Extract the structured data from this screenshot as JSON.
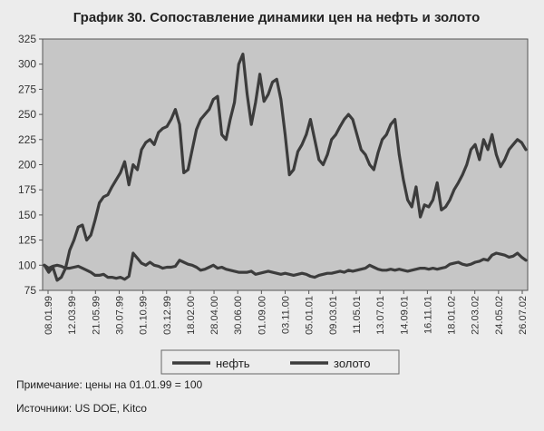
{
  "notes": {
    "note": "Примечание: цены на 01.01.99 = 100",
    "sources": "Источники: US DOE, Kitco"
  },
  "chart_data": {
    "type": "line",
    "title": "График 30. Сопоставление динамики цен на нефть и золото",
    "xlabel": "",
    "ylabel": "",
    "ylim": [
      75,
      325
    ],
    "yticks": [
      75,
      100,
      125,
      150,
      175,
      200,
      225,
      250,
      275,
      300,
      325
    ],
    "x_tick_labels": [
      "08.01.99",
      "12.03.99",
      "21.05.99",
      "30.07.99",
      "01.10.99",
      "03.12.99",
      "18.02.00",
      "28.04.00",
      "30.06.00",
      "01.09.00",
      "03.11.00",
      "05.01.01",
      "09.03.01",
      "11.05.01",
      "13.07.01",
      "14.09.01",
      "16.11.01",
      "18.01.02",
      "22.03.02",
      "24.05.02",
      "26.07.02"
    ],
    "grid": false,
    "legend_position": "bottom",
    "colors": {
      "plot_background": "#c6c6c6",
      "line": "#3c3c3c"
    },
    "series": [
      {
        "name": "нефть",
        "values": [
          100,
          93,
          98,
          85,
          88,
          97,
          115,
          125,
          138,
          140,
          125,
          130,
          145,
          162,
          168,
          170,
          178,
          185,
          192,
          203,
          180,
          200,
          195,
          215,
          222,
          225,
          220,
          232,
          236,
          238,
          245,
          255,
          240,
          192,
          195,
          215,
          235,
          245,
          250,
          255,
          265,
          268,
          230,
          225,
          245,
          262,
          300,
          310,
          270,
          240,
          262,
          290,
          263,
          270,
          282,
          285,
          265,
          230,
          190,
          195,
          213,
          220,
          230,
          245,
          225,
          205,
          200,
          210,
          225,
          230,
          238,
          245,
          250,
          245,
          230,
          215,
          210,
          200,
          195,
          212,
          225,
          230,
          240,
          245,
          210,
          185,
          165,
          158,
          178,
          148,
          160,
          158,
          165,
          182,
          155,
          158,
          165,
          175,
          182,
          190,
          200,
          215,
          220,
          205,
          225,
          215,
          230,
          210,
          198,
          205,
          215,
          220,
          225,
          222,
          215
        ]
      },
      {
        "name": "золото",
        "values": [
          100,
          97,
          99,
          100,
          99,
          97,
          97,
          98,
          99,
          97,
          95,
          93,
          90,
          90,
          91,
          88,
          88,
          87,
          88,
          86,
          89,
          112,
          107,
          102,
          100,
          103,
          100,
          99,
          97,
          98,
          98,
          99,
          105,
          103,
          101,
          100,
          98,
          95,
          96,
          98,
          100,
          97,
          98,
          96,
          95,
          94,
          93,
          93,
          93,
          94,
          91,
          92,
          93,
          94,
          93,
          92,
          91,
          92,
          91,
          90,
          91,
          92,
          91,
          89,
          88,
          90,
          91,
          92,
          92,
          93,
          94,
          93,
          95,
          94,
          95,
          96,
          97,
          100,
          98,
          96,
          95,
          95,
          96,
          95,
          96,
          95,
          94,
          95,
          96,
          97,
          97,
          96,
          97,
          96,
          97,
          98,
          101,
          102,
          103,
          101,
          100,
          101,
          103,
          104,
          106,
          105,
          110,
          112,
          111,
          110,
          108,
          109,
          112,
          108,
          105
        ]
      }
    ]
  }
}
